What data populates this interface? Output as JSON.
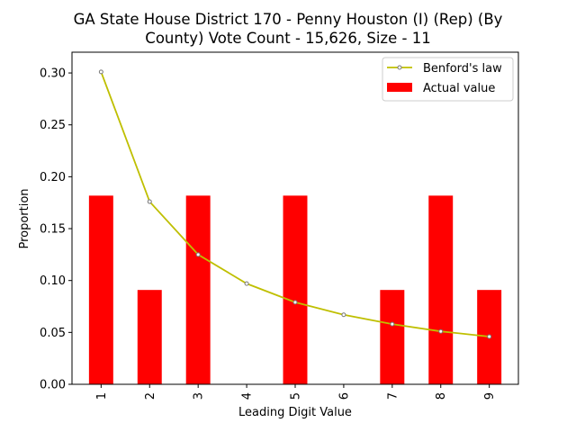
{
  "chart_data": {
    "type": "bar",
    "title_lines": [
      "GA State House District 170 - Penny Houston (I) (Rep) (By",
      "County) Vote Count - 15,626, Size - 11"
    ],
    "xlabel": "Leading Digit Value",
    "ylabel": "Proportion",
    "categories": [
      "1",
      "2",
      "3",
      "4",
      "5",
      "6",
      "7",
      "8",
      "9"
    ],
    "ylim": [
      0,
      0.32
    ],
    "yticks": [
      "0.00",
      "0.05",
      "0.10",
      "0.15",
      "0.20",
      "0.25",
      "0.30"
    ],
    "series": [
      {
        "name": "Actual value",
        "kind": "bar",
        "color": "#ff0000",
        "values": [
          0.1818,
          0.0909,
          0.1818,
          0.0,
          0.1818,
          0.0,
          0.0909,
          0.1818,
          0.0909
        ]
      },
      {
        "name": "Benford's law",
        "kind": "line",
        "color": "#bfbf00",
        "values": [
          0.301,
          0.176,
          0.125,
          0.097,
          0.079,
          0.067,
          0.058,
          0.051,
          0.046
        ]
      }
    ],
    "legend": {
      "placement": "top-right",
      "entries": [
        "Benford's law",
        "Actual value"
      ]
    },
    "grid": false
  }
}
